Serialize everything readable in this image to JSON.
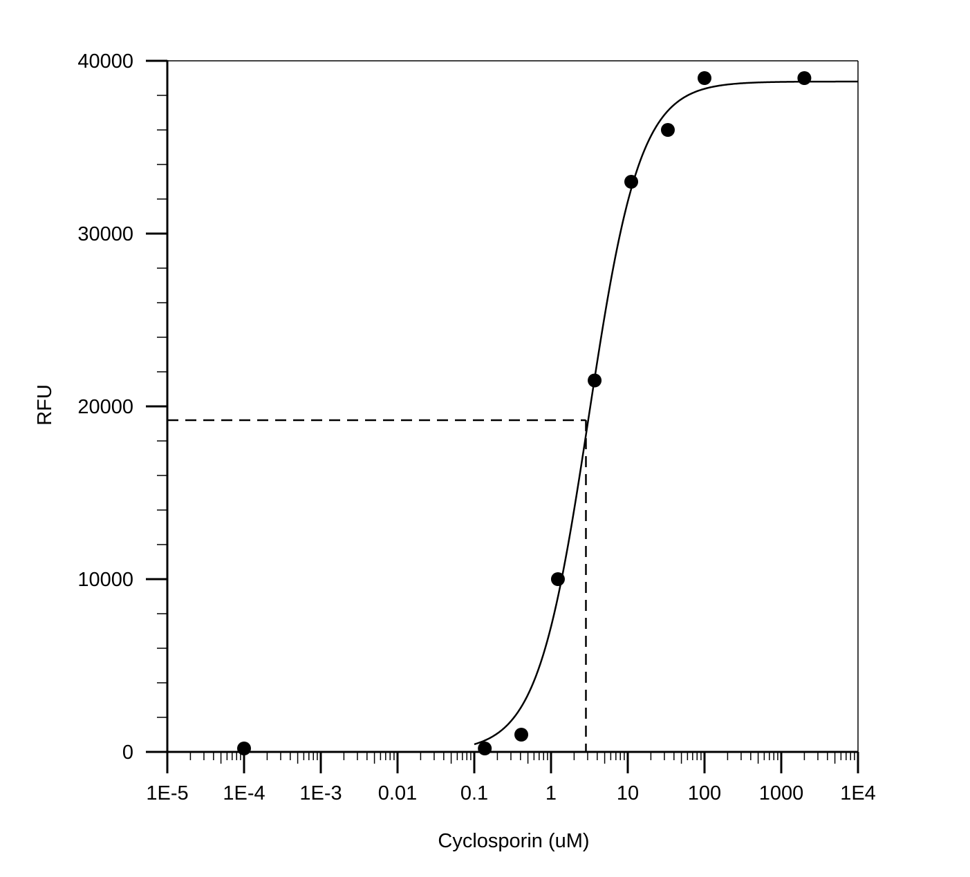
{
  "chart_data": {
    "type": "scatter",
    "title": "",
    "xlabel": "Cyclosporin (uM)",
    "ylabel": "RFU",
    "x_scale": "log",
    "xlim": [
      1e-05,
      10000
    ],
    "ylim": [
      0,
      40000
    ],
    "x_ticks": [
      {
        "value": 1e-05,
        "label": "1E-5"
      },
      {
        "value": 0.0001,
        "label": "1E-4"
      },
      {
        "value": 0.001,
        "label": "1E-3"
      },
      {
        "value": 0.01,
        "label": "0.01"
      },
      {
        "value": 0.1,
        "label": "0.1"
      },
      {
        "value": 1,
        "label": "1"
      },
      {
        "value": 10,
        "label": "10"
      },
      {
        "value": 100,
        "label": "100"
      },
      {
        "value": 1000,
        "label": "1000"
      },
      {
        "value": 10000,
        "label": "1E4"
      }
    ],
    "y_ticks": [
      {
        "value": 0,
        "label": "0"
      },
      {
        "value": 10000,
        "label": "10000"
      },
      {
        "value": 20000,
        "label": "20000"
      },
      {
        "value": 30000,
        "label": "30000"
      },
      {
        "value": 40000,
        "label": "40000"
      }
    ],
    "y_minor_step": 2000,
    "grid": false,
    "legend": "none",
    "marker_color": "#000000",
    "points": [
      {
        "x": 0.0001,
        "y": 200
      },
      {
        "x": 0.137,
        "y": 200
      },
      {
        "x": 0.41,
        "y": 1000
      },
      {
        "x": 1.23,
        "y": 10000
      },
      {
        "x": 3.7,
        "y": 21500
      },
      {
        "x": 11.1,
        "y": 33000
      },
      {
        "x": 33.3,
        "y": 36000
      },
      {
        "x": 100,
        "y": 39000
      },
      {
        "x": 2000,
        "y": 39000
      }
    ],
    "fit_curve": {
      "model": "4PL",
      "bottom": 0,
      "top": 38800,
      "ec50": 3.1,
      "hill": 1.3,
      "x_range": [
        0.1,
        10000
      ]
    },
    "reference_lines": {
      "style": "dashed",
      "x": 2.85,
      "y": 19200
    }
  }
}
